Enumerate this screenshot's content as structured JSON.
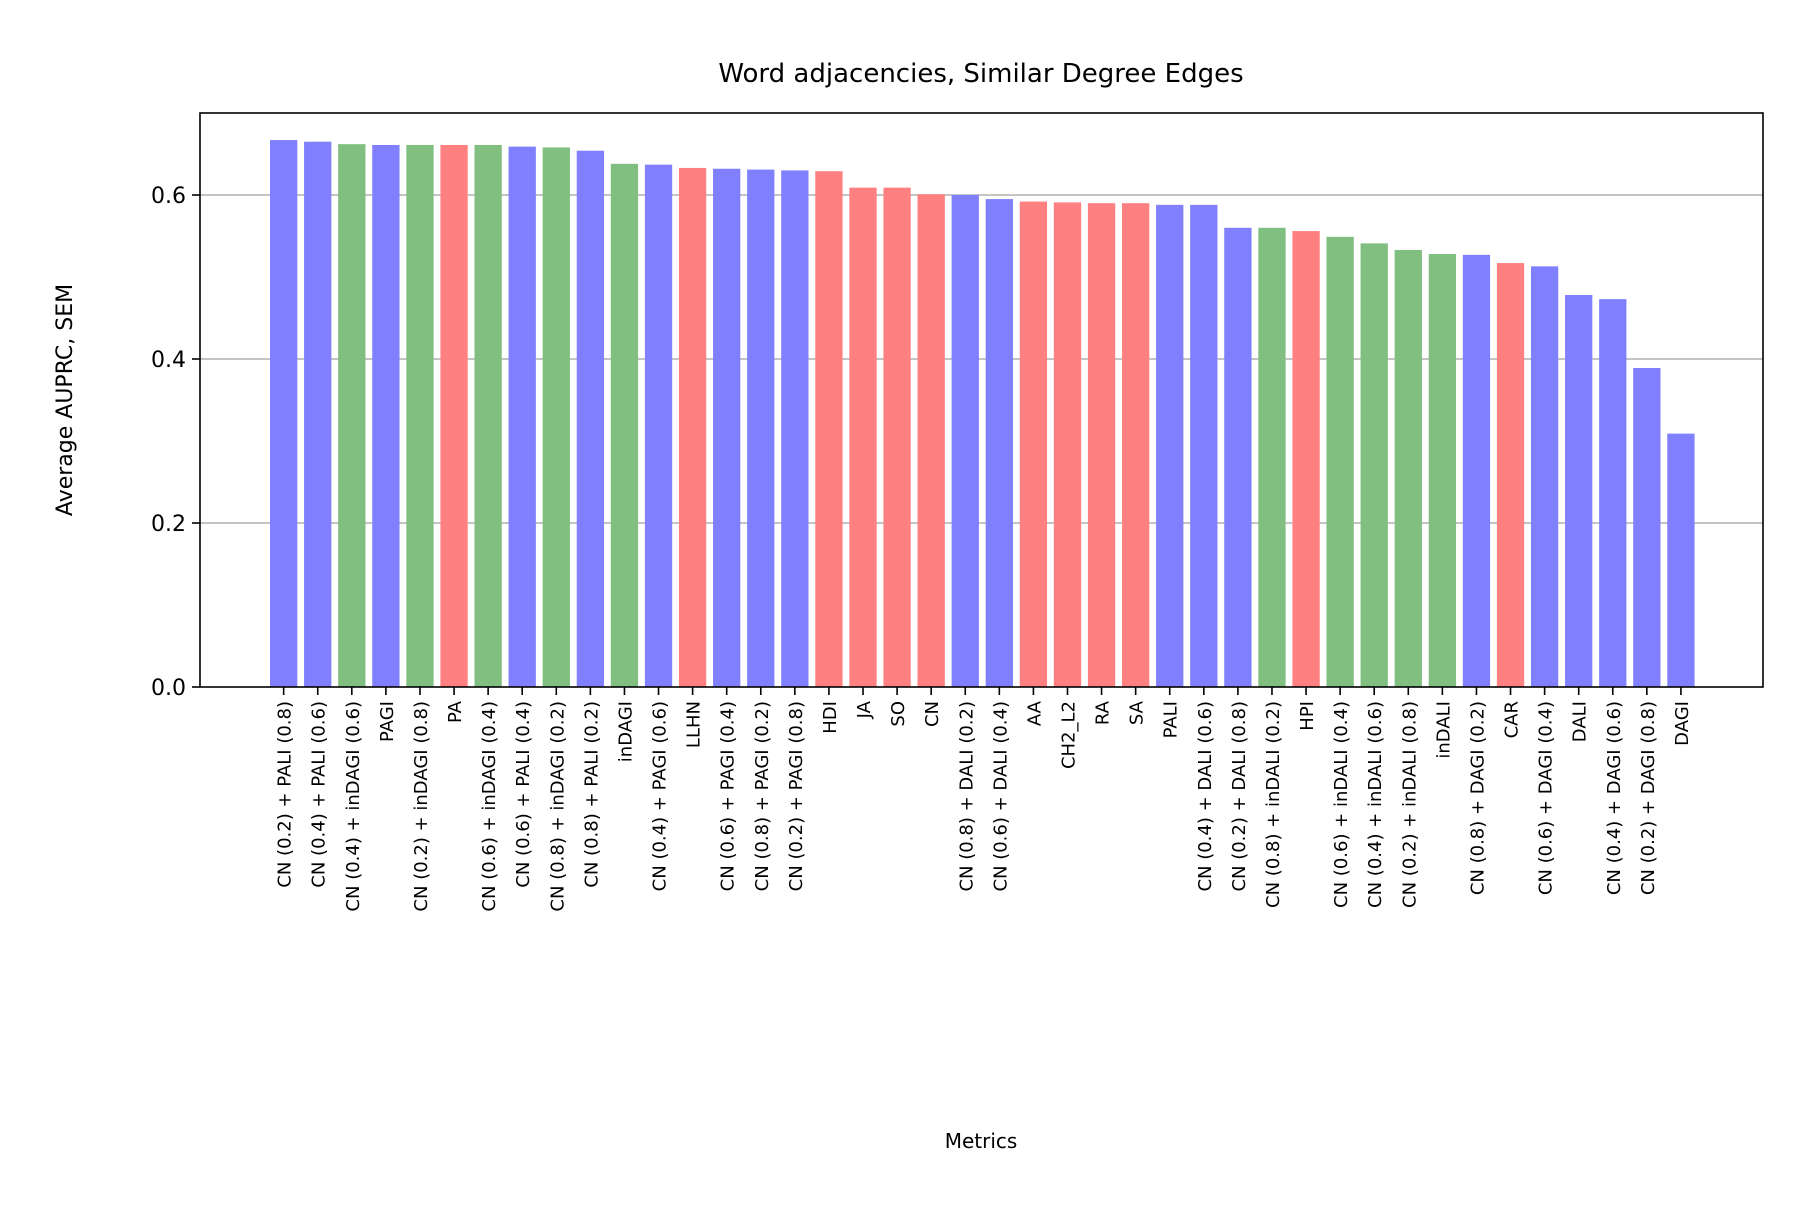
{
  "chart_data": {
    "type": "bar",
    "title": "Word adjacencies, Similar Degree Edges",
    "xlabel": "Metrics",
    "ylabel": "Average AUPRC, SEM",
    "ylim": [
      0.0,
      0.7
    ],
    "yticks": [
      0.0,
      0.2,
      0.4,
      0.6
    ],
    "ytick_labels": [
      "0.0",
      "0.2",
      "0.4",
      "0.6"
    ],
    "grid": "horizontal",
    "colors": {
      "blue": "#8080ff",
      "green": "#80bf80",
      "red": "#ff8080"
    },
    "categories": [
      "CN (0.2) + PALI (0.8)",
      "CN (0.4) + PALI (0.6)",
      "CN (0.4) + inDAGI (0.6)",
      "PAGI",
      "CN (0.2) + inDAGI (0.8)",
      "PA",
      "CN (0.6) + inDAGI (0.4)",
      "CN (0.6) + PALI (0.4)",
      "CN (0.8) + inDAGI (0.2)",
      "CN (0.8) + PALI (0.2)",
      "inDAGI",
      "CN (0.4) + PAGI (0.6)",
      "LLHN",
      "CN (0.6) + PAGI (0.4)",
      "CN (0.8) + PAGI (0.2)",
      "CN (0.2) + PAGI (0.8)",
      "HDI",
      "JA",
      "SO",
      "CN",
      "CN (0.8) + DALI (0.2)",
      "CN (0.6) + DALI (0.4)",
      "AA",
      "CH2_L2",
      "RA",
      "SA",
      "PALI",
      "CN (0.4) + DALI (0.6)",
      "CN (0.2) + DALI (0.8)",
      "CN (0.8) + inDALI (0.2)",
      "HPI",
      "CN (0.6) + inDALI (0.4)",
      "CN (0.4) + inDALI (0.6)",
      "CN (0.2) + inDALI (0.8)",
      "inDALI",
      "CN (0.8) + DAGI (0.2)",
      "CAR",
      "CN (0.6) + DAGI (0.4)",
      "DALI",
      "CN (0.4) + DAGI (0.6)",
      "CN (0.2) + DAGI (0.8)",
      "DAGI"
    ],
    "values": [
      0.667,
      0.665,
      0.662,
      0.661,
      0.661,
      0.661,
      0.661,
      0.659,
      0.658,
      0.654,
      0.638,
      0.637,
      0.633,
      0.632,
      0.631,
      0.63,
      0.629,
      0.609,
      0.609,
      0.601,
      0.6,
      0.595,
      0.592,
      0.591,
      0.59,
      0.59,
      0.588,
      0.588,
      0.56,
      0.56,
      0.556,
      0.549,
      0.541,
      0.533,
      0.528,
      0.527,
      0.517,
      0.513,
      0.478,
      0.473,
      0.389,
      0.309
    ],
    "bar_colors": [
      "blue",
      "blue",
      "green",
      "blue",
      "green",
      "red",
      "green",
      "blue",
      "green",
      "blue",
      "green",
      "blue",
      "red",
      "blue",
      "blue",
      "blue",
      "red",
      "red",
      "red",
      "red",
      "blue",
      "blue",
      "red",
      "red",
      "red",
      "red",
      "blue",
      "blue",
      "blue",
      "green",
      "red",
      "green",
      "green",
      "green",
      "green",
      "blue",
      "red",
      "blue",
      "blue",
      "blue",
      "blue",
      "blue"
    ]
  }
}
